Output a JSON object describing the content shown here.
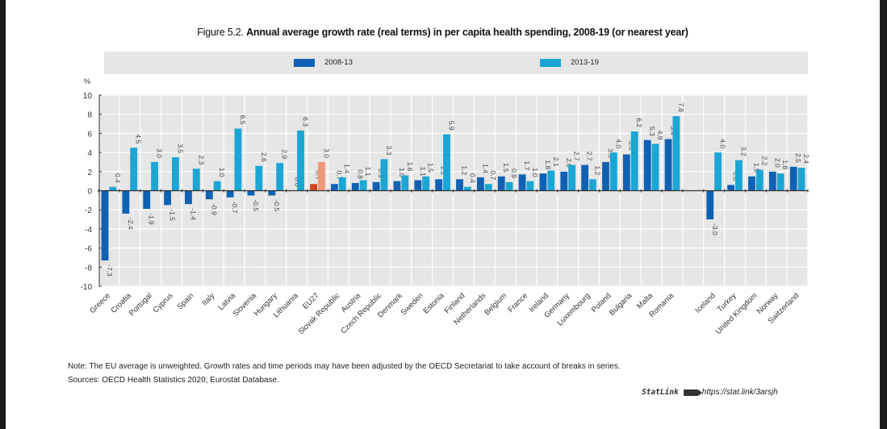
{
  "figure": {
    "lead": "Figure 5.2. ",
    "title": "Annual average growth rate (real terms) in per capita health spending, 2008-19 (or nearest year)"
  },
  "legend": [
    {
      "label": "2008-13",
      "color": "#0f61b3"
    },
    {
      "label": "2013-19",
      "color": "#1ba6d3"
    }
  ],
  "highlight_colors": {
    "2008-13": "#d9401a",
    "2013-19": "#f0977a"
  },
  "chart_data": {
    "type": "bar",
    "title": "Annual average growth rate (real terms) in per capita health spending, 2008-19 (or nearest year)",
    "xlabel": "",
    "ylabel": "%",
    "ylim": [
      -10,
      10
    ],
    "yticks": [
      10,
      8,
      6,
      4,
      2,
      0,
      -2,
      -4,
      -6,
      -8,
      -10
    ],
    "grid": true,
    "legend_position": "top",
    "highlight_category": "EU27",
    "categories": [
      "Greece",
      "Croatia",
      "Portugal",
      "Cyprus",
      "Spain",
      "Italy",
      "Latvia",
      "Slovenia",
      "Hungary",
      "Lithuania",
      "EU27",
      "Slovak Republic",
      "Austria",
      "Czech Republic",
      "Denmark",
      "Sweden",
      "Estonia",
      "Finland",
      "Netherlands",
      "Belgium",
      "France",
      "Ireland",
      "Germany",
      "Luxembourg",
      "Poland",
      "Bulgaria",
      "Malta",
      "Romania",
      "",
      "Iceland",
      "Turkey",
      "United Kingdom",
      "Norway",
      "Switzerland"
    ],
    "series": [
      {
        "name": "2008-13",
        "values": [
          -7.3,
          -2.4,
          -1.9,
          -1.5,
          -1.4,
          -0.9,
          -0.7,
          -0.5,
          -0.5,
          0.0,
          0.7,
          0.7,
          0.8,
          0.9,
          1.0,
          1.1,
          1.2,
          1.2,
          1.4,
          1.5,
          1.7,
          1.8,
          2.0,
          2.7,
          3.0,
          3.8,
          5.3,
          5.4,
          null,
          -3.0,
          0.6,
          1.5,
          2.0,
          2.5
        ]
      },
      {
        "name": "2013-19",
        "values": [
          0.4,
          4.5,
          3.0,
          3.5,
          2.3,
          1.0,
          6.5,
          2.6,
          2.9,
          6.3,
          3.0,
          1.4,
          1.1,
          3.3,
          1.6,
          1.5,
          5.9,
          0.4,
          0.7,
          0.9,
          1.0,
          2.1,
          2.7,
          1.2,
          4.0,
          6.2,
          4.9,
          7.8,
          null,
          4.0,
          3.2,
          2.2,
          1.8,
          2.4
        ]
      }
    ]
  },
  "notes": {
    "note": "Note: The EU average is unweighted. Growth rates and time periods may have been adjusted by the OECD Secretariat to take account of breaks in series.",
    "sources": "Sources: OECD Health Statistics 2020; Eurostat Database."
  },
  "statlink": {
    "brand": "StatLink",
    "url": "https://stat.link/3arsjh"
  }
}
